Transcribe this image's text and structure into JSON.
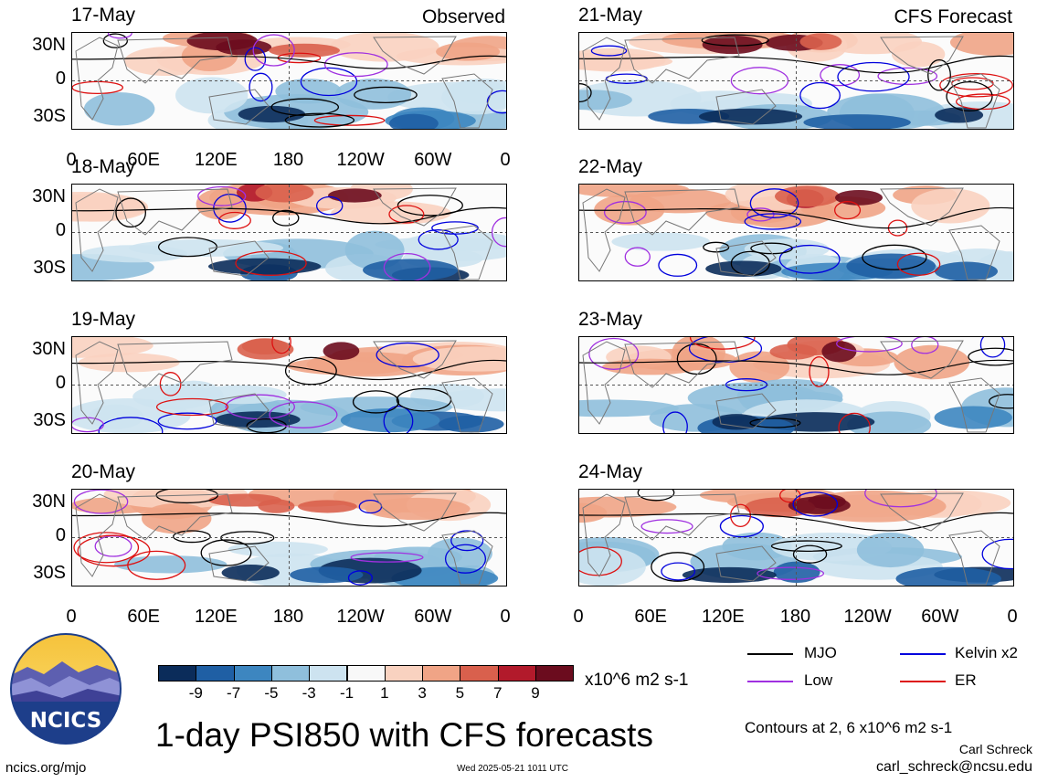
{
  "chart_data": [
    {
      "type": "heatmap",
      "date": "17-May",
      "corner_label": "Observed",
      "ylabels": [
        "30N",
        "0",
        "30S"
      ],
      "xticks": [
        "0",
        "60E",
        "120E",
        "180",
        "120W",
        "60W",
        "0"
      ]
    },
    {
      "type": "heatmap",
      "date": "18-May",
      "corner_label": "",
      "ylabels": [
        "30N",
        "0",
        "30S"
      ]
    },
    {
      "type": "heatmap",
      "date": "19-May",
      "corner_label": "",
      "ylabels": [
        "30N",
        "0",
        "30S"
      ]
    },
    {
      "type": "heatmap",
      "date": "20-May",
      "corner_label": "",
      "ylabels": [
        "30N",
        "0",
        "30S"
      ],
      "xticks": [
        "0",
        "60E",
        "120E",
        "180",
        "120W",
        "60W",
        "0"
      ]
    },
    {
      "type": "heatmap",
      "date": "21-May",
      "corner_label": "CFS Forecast"
    },
    {
      "type": "heatmap",
      "date": "22-May",
      "corner_label": ""
    },
    {
      "type": "heatmap",
      "date": "23-May",
      "corner_label": ""
    },
    {
      "type": "heatmap",
      "date": "24-May",
      "corner_label": "",
      "xticks": [
        "0",
        "60E",
        "120E",
        "180",
        "120W",
        "60W",
        "0"
      ]
    }
  ],
  "colorbar": {
    "ticks": [
      "-9",
      "-7",
      "-5",
      "-3",
      "-1",
      "1",
      "3",
      "5",
      "7",
      "9"
    ],
    "colors": [
      "#0b2c5a",
      "#1f5fa4",
      "#3d86c0",
      "#8fbfdc",
      "#cde3f0",
      "#f8f8f8",
      "#f9d2c0",
      "#f0a486",
      "#d9604d",
      "#b21a2b",
      "#6b0c1e"
    ],
    "units": "x10^6 m2 s-1"
  },
  "legend": {
    "items": [
      {
        "label": "MJO",
        "color": "#000000"
      },
      {
        "label": "Kelvin x2",
        "color": "#0000dd"
      },
      {
        "label": "Low",
        "color": "#a030e0"
      },
      {
        "label": "ER",
        "color": "#dd1010"
      }
    ]
  },
  "title": "1-day PSI850 with CFS forecasts",
  "contour_note": "Contours at 2, 6 x10^6 m2 s-1",
  "author": "Carl Schreck",
  "email": "carl_schreck@ncsu.edu",
  "website": "ncics.org/mjo",
  "timestamp": "Wed 2025-05-21 1011 UTC",
  "logo_text": "NCICS"
}
